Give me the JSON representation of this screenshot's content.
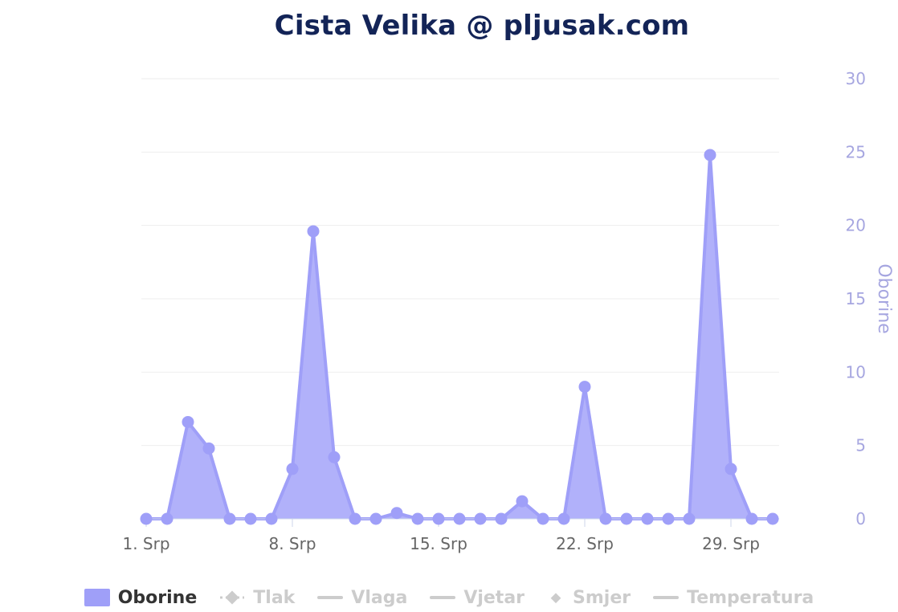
{
  "title": "Cista Velika @ pljusak.com",
  "colors": {
    "series": "#9f9ff8",
    "series_fill": "#adadfa",
    "marker": "#9f9ff8",
    "axis_text_y": "#a6a6e0",
    "axis_text_x": "#666666",
    "grid": "#eeeeee",
    "title": "#132457",
    "legend_inactive": "#cccccc",
    "legend_active": "#333333"
  },
  "chart_data": {
    "type": "area",
    "x_tick_labels": [
      "1. Srp",
      "8. Srp",
      "15. Srp",
      "22. Srp",
      "29. Srp"
    ],
    "x_tick_days": [
      1,
      8,
      15,
      22,
      29
    ],
    "x_range": [
      1,
      31
    ],
    "y_axis": {
      "title": "Oborine",
      "position": "right",
      "range": [
        0,
        30
      ],
      "ticks": [
        0,
        5,
        10,
        15,
        20,
        25,
        30
      ]
    },
    "grid": true,
    "legend_position": "bottom",
    "series": [
      {
        "name": "Oborine",
        "days": [
          1,
          2,
          3,
          4,
          5,
          6,
          7,
          8,
          9,
          10,
          11,
          12,
          13,
          14,
          15,
          16,
          17,
          18,
          19,
          20,
          21,
          22,
          23,
          24,
          25,
          26,
          27,
          28,
          29,
          30,
          31
        ],
        "values": [
          0,
          0,
          6.6,
          4.8,
          0,
          0,
          0,
          3.4,
          19.6,
          4.2,
          0,
          0,
          0.4,
          0,
          0,
          0,
          0,
          0,
          1.2,
          0,
          0,
          9.0,
          0,
          0,
          0,
          0,
          0,
          24.8,
          3.4,
          0,
          0
        ]
      }
    ]
  },
  "legend": [
    {
      "label": "Oborine",
      "symbol": "rect",
      "active": true
    },
    {
      "label": "Tlak",
      "symbol": "dotline",
      "active": false
    },
    {
      "label": "Vlaga",
      "symbol": "line",
      "active": false
    },
    {
      "label": "Vjetar",
      "symbol": "line",
      "active": false
    },
    {
      "label": "Smjer",
      "symbol": "diamond",
      "active": false
    },
    {
      "label": "Temperatura",
      "symbol": "line",
      "active": false
    }
  ]
}
